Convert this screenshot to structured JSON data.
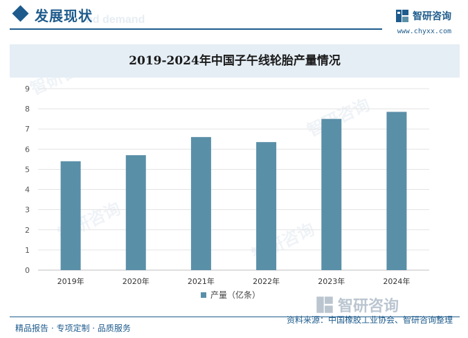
{
  "header": {
    "section_title": "发展现状",
    "section_watermark": "nd demand",
    "brand_name": "智研咨询",
    "brand_url": "www.chyxx.com"
  },
  "colors": {
    "accent": "#1e5b8c",
    "bar": "#5a8fa8",
    "title_band": "#e5eef5"
  },
  "chart_data": {
    "type": "bar",
    "title": "2019-2024年中国子午线轮胎产量情况",
    "categories": [
      "2019年",
      "2020年",
      "2021年",
      "2022年",
      "2023年",
      "2024年"
    ],
    "series": [
      {
        "name": "产量（亿条）",
        "values": [
          5.4,
          5.7,
          6.6,
          6.35,
          7.5,
          7.85
        ]
      }
    ],
    "yticks": [
      "0",
      "1",
      "2",
      "3",
      "4",
      "5",
      "6",
      "7",
      "8",
      "9"
    ],
    "ylim": [
      0,
      9
    ],
    "grid": true,
    "legend": "bottom"
  },
  "footer": {
    "left": "精品报告 · 专项定制 · 品质服务",
    "source_brand": "智研咨询",
    "right": "资料来源：中国橡胶工业协会、智研咨询整理"
  }
}
